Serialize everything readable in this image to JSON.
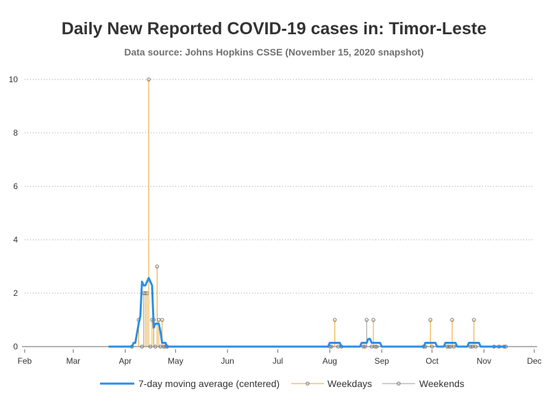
{
  "chart_data": {
    "type": "line",
    "title": "Daily New Reported COVID-19 cases in: Timor-Leste",
    "subtitle": "Data source: Johns Hopkins CSSE (November 15, 2020 snapshot)",
    "xlabel": "",
    "ylabel": "",
    "x_range": [
      "2020-02-01",
      "2020-12-01"
    ],
    "ylim": [
      0,
      10
    ],
    "y_ticks": [
      0,
      2,
      4,
      6,
      8,
      10
    ],
    "x_ticks": [
      {
        "date": "2020-02-01",
        "label": "Feb"
      },
      {
        "date": "2020-03-01",
        "label": "Mar"
      },
      {
        "date": "2020-04-01",
        "label": "Apr"
      },
      {
        "date": "2020-05-01",
        "label": "May"
      },
      {
        "date": "2020-06-01",
        "label": "Jun"
      },
      {
        "date": "2020-07-01",
        "label": "Jul"
      },
      {
        "date": "2020-08-01",
        "label": "Aug"
      },
      {
        "date": "2020-09-01",
        "label": "Sep"
      },
      {
        "date": "2020-10-01",
        "label": "Oct"
      },
      {
        "date": "2020-11-01",
        "label": "Nov"
      },
      {
        "date": "2020-12-01",
        "label": "Dec"
      }
    ],
    "grid": "horizontal dotted",
    "legend_position": "bottom",
    "series": [
      {
        "name": "7-day moving average (centered)",
        "color": "#2b8ee6",
        "style": "line",
        "points": [
          [
            "2020-03-22",
            0
          ],
          [
            "2020-04-05",
            0
          ],
          [
            "2020-04-06",
            0.14
          ],
          [
            "2020-04-07",
            0.14
          ],
          [
            "2020-04-09",
            0.86
          ],
          [
            "2020-04-10",
            1.14
          ],
          [
            "2020-04-11",
            2.43
          ],
          [
            "2020-04-12",
            2.29
          ],
          [
            "2020-04-13",
            2.29
          ],
          [
            "2020-04-15",
            2.57
          ],
          [
            "2020-04-17",
            2.29
          ],
          [
            "2020-04-18",
            0.71
          ],
          [
            "2020-04-19",
            0.86
          ],
          [
            "2020-04-21",
            0.86
          ],
          [
            "2020-04-22",
            0.57
          ],
          [
            "2020-04-23",
            0.14
          ],
          [
            "2020-04-25",
            0.14
          ],
          [
            "2020-04-26",
            0
          ],
          [
            "2020-07-31",
            0
          ],
          [
            "2020-08-01",
            0.14
          ],
          [
            "2020-08-07",
            0.14
          ],
          [
            "2020-08-08",
            0
          ],
          [
            "2020-08-19",
            0
          ],
          [
            "2020-08-20",
            0.14
          ],
          [
            "2020-08-23",
            0.14
          ],
          [
            "2020-08-24",
            0.29
          ],
          [
            "2020-08-25",
            0.29
          ],
          [
            "2020-08-26",
            0.14
          ],
          [
            "2020-08-31",
            0.14
          ],
          [
            "2020-09-01",
            0
          ],
          [
            "2020-09-26",
            0
          ],
          [
            "2020-09-27",
            0.14
          ],
          [
            "2020-10-03",
            0.14
          ],
          [
            "2020-10-04",
            0
          ],
          [
            "2020-10-08",
            0
          ],
          [
            "2020-10-09",
            0.14
          ],
          [
            "2020-10-15",
            0.14
          ],
          [
            "2020-10-16",
            0
          ],
          [
            "2020-10-22",
            0
          ],
          [
            "2020-10-23",
            0.14
          ],
          [
            "2020-10-29",
            0.14
          ],
          [
            "2020-10-30",
            0
          ],
          [
            "2020-11-14",
            0
          ]
        ]
      },
      {
        "name": "Weekdays",
        "color": "#e8a426",
        "style": "needle",
        "points": [
          [
            "2020-04-09",
            1
          ],
          [
            "2020-04-13",
            2
          ],
          [
            "2020-04-14",
            2
          ],
          [
            "2020-04-15",
            10
          ],
          [
            "2020-04-16",
            0
          ],
          [
            "2020-04-17",
            1
          ],
          [
            "2020-04-20",
            3
          ],
          [
            "2020-04-21",
            1
          ],
          [
            "2020-04-22",
            0
          ],
          [
            "2020-04-23",
            1
          ],
          [
            "2020-04-24",
            0
          ],
          [
            "2020-08-04",
            1
          ],
          [
            "2020-08-06",
            0
          ],
          [
            "2020-08-21",
            0
          ],
          [
            "2020-08-26",
            0
          ],
          [
            "2020-08-27",
            1
          ],
          [
            "2020-08-28",
            0
          ],
          [
            "2020-09-30",
            1
          ],
          [
            "2020-10-01",
            0
          ],
          [
            "2020-10-12",
            0
          ],
          [
            "2020-10-13",
            1
          ],
          [
            "2020-10-14",
            0
          ],
          [
            "2020-10-26",
            1
          ],
          [
            "2020-10-27",
            0
          ],
          [
            "2020-11-10",
            0
          ],
          [
            "2020-11-13",
            0
          ]
        ]
      },
      {
        "name": "Weekends",
        "color": "#999999",
        "style": "needle",
        "points": [
          [
            "2020-04-05",
            0
          ],
          [
            "2020-04-11",
            0
          ],
          [
            "2020-04-12",
            2
          ],
          [
            "2020-04-18",
            1
          ],
          [
            "2020-04-19",
            0
          ],
          [
            "2020-04-25",
            0
          ],
          [
            "2020-04-26",
            0
          ],
          [
            "2020-08-01",
            0
          ],
          [
            "2020-08-02",
            0
          ],
          [
            "2020-08-08",
            0
          ],
          [
            "2020-08-22",
            0
          ],
          [
            "2020-08-23",
            1
          ],
          [
            "2020-08-29",
            0
          ],
          [
            "2020-09-26",
            0
          ],
          [
            "2020-09-27",
            0
          ],
          [
            "2020-10-10",
            0
          ],
          [
            "2020-10-11",
            0
          ],
          [
            "2020-10-24",
            0
          ],
          [
            "2020-10-25",
            0
          ],
          [
            "2020-11-07",
            0
          ],
          [
            "2020-11-14",
            0
          ]
        ]
      }
    ]
  }
}
